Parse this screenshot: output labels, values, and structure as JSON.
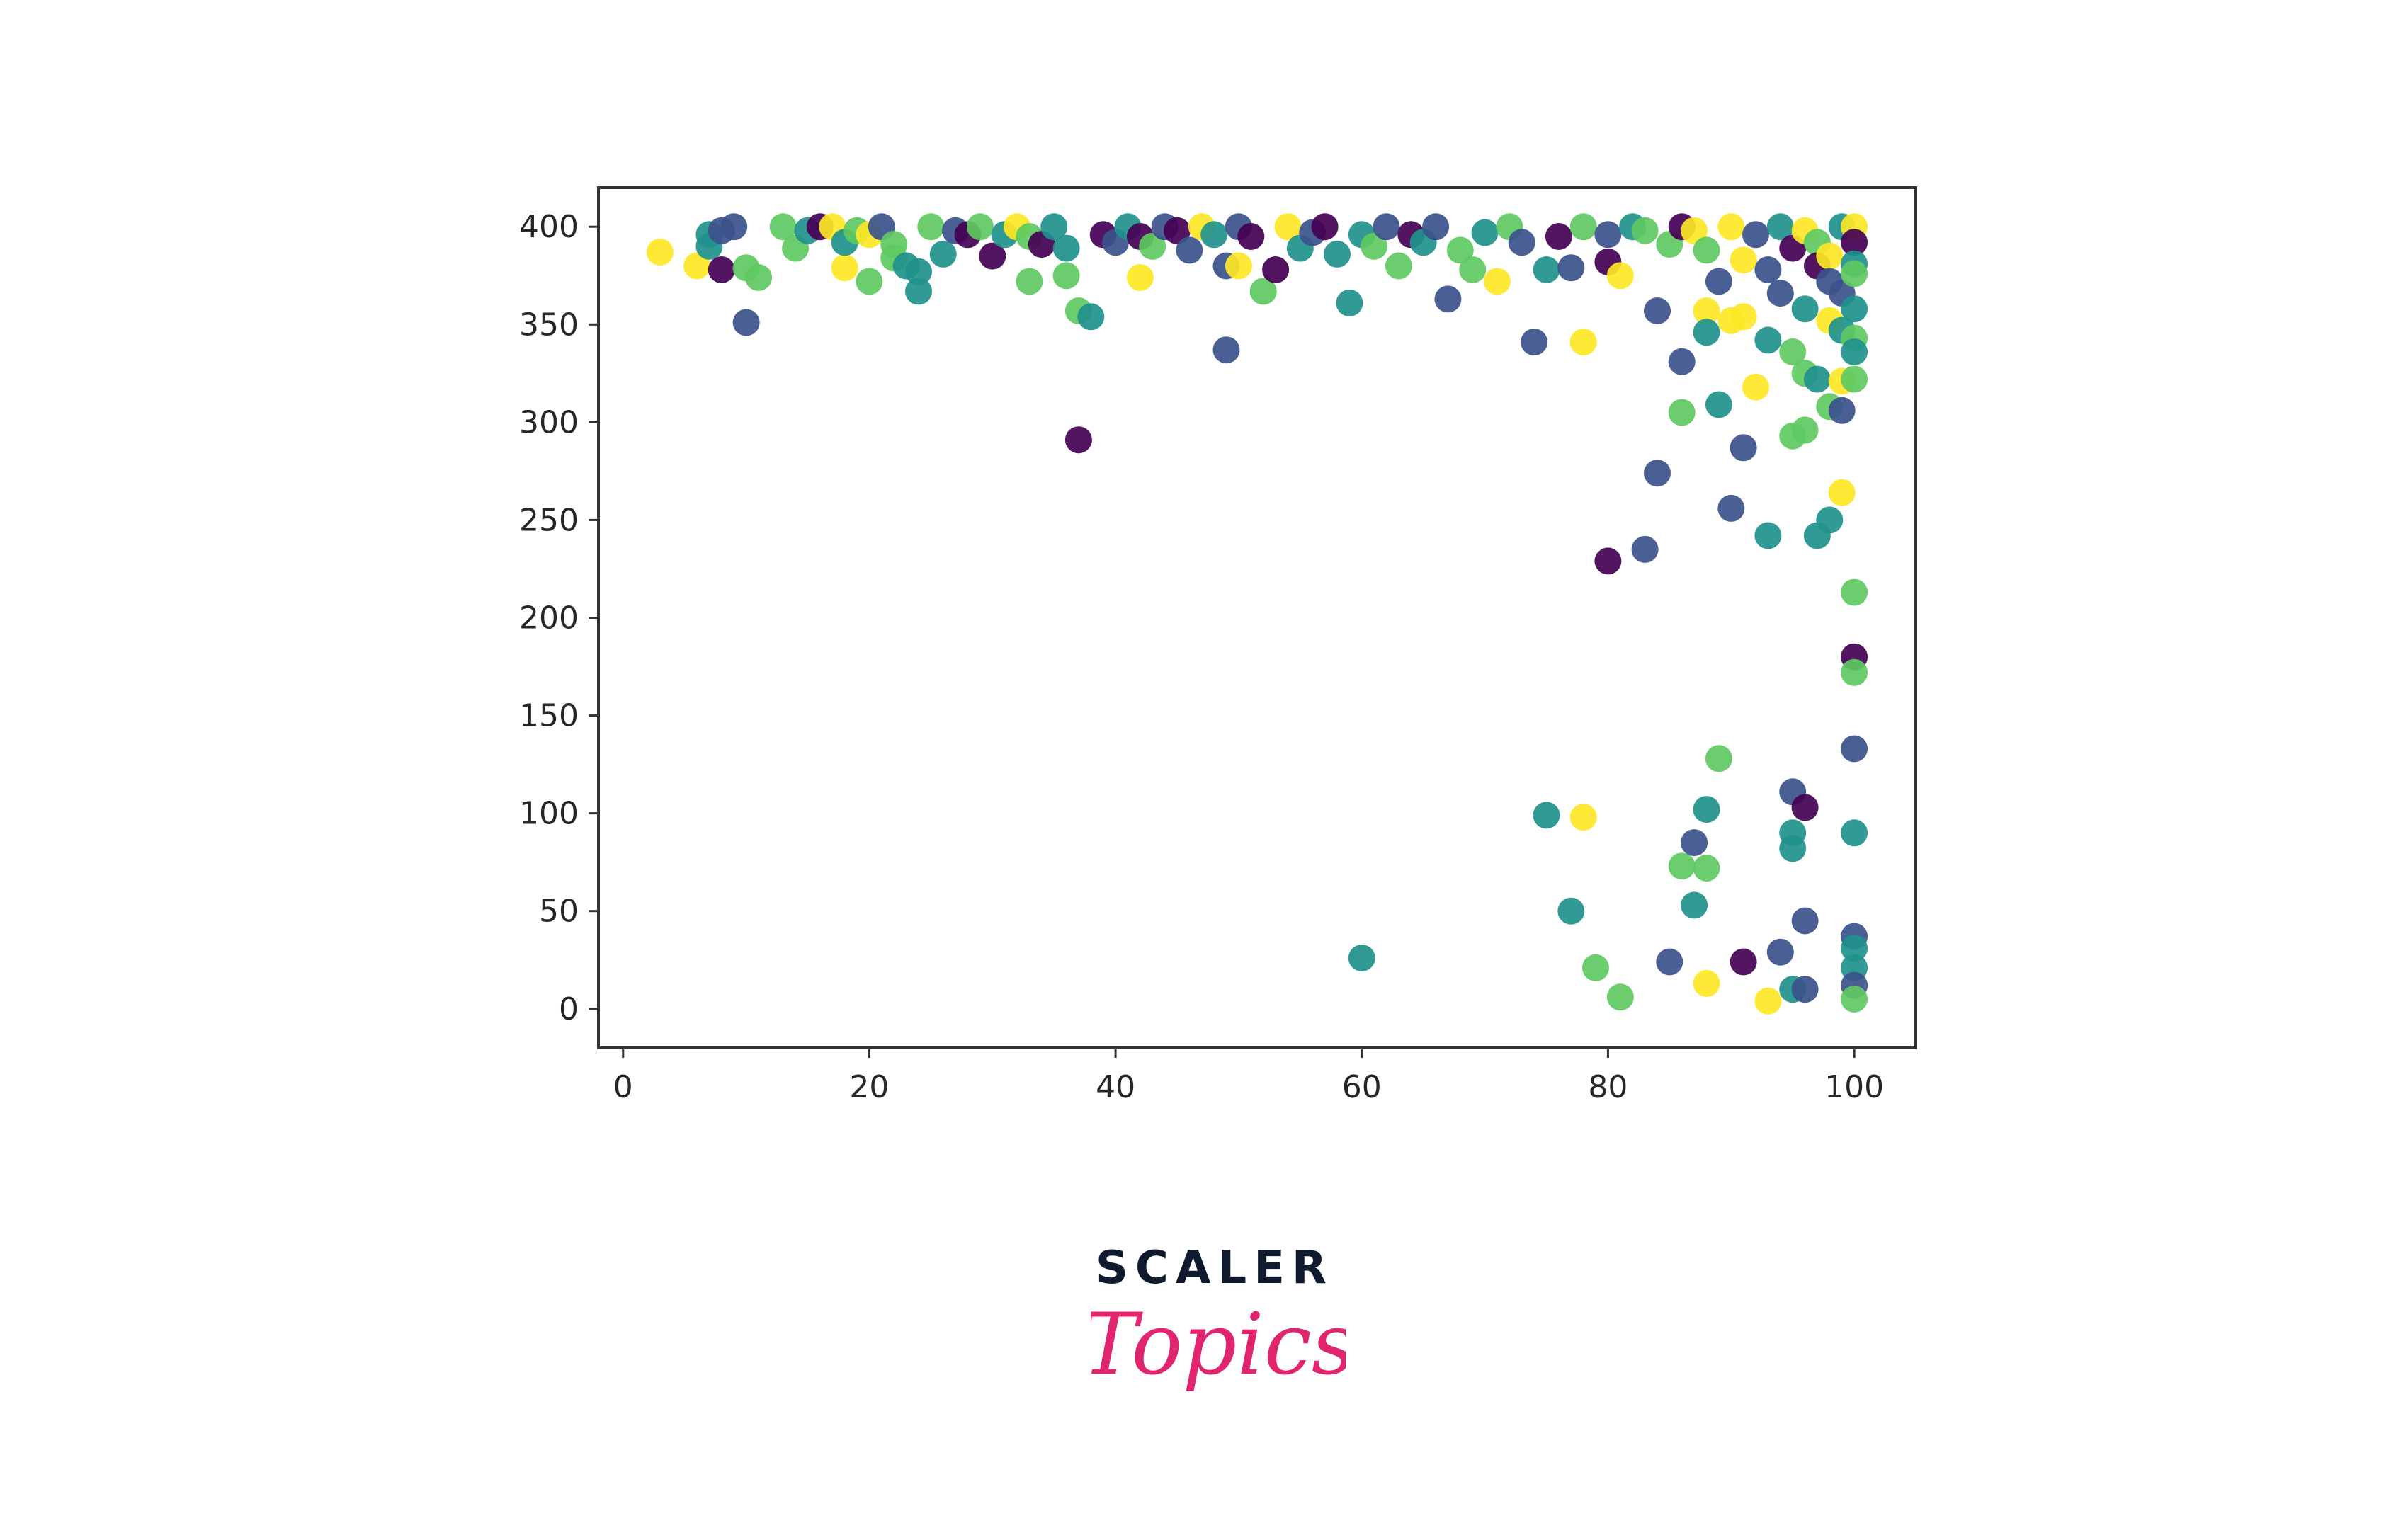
{
  "chart_data": {
    "type": "scatter",
    "title": "",
    "xlabel": "",
    "ylabel": "",
    "xlim": [
      -2,
      105
    ],
    "ylim": [
      -20,
      420
    ],
    "x_ticks": [
      "0",
      "20",
      "40",
      "60",
      "80",
      "100"
    ],
    "y_ticks": [
      "0",
      "50",
      "100",
      "150",
      "200",
      "250",
      "300",
      "350",
      "400"
    ],
    "grid": false,
    "legend": "none",
    "colormap": "viridis",
    "palette": [
      "#440154",
      "#3b528b",
      "#21918c",
      "#5ec962",
      "#fde725"
    ],
    "points": [
      [
        3,
        387,
        4
      ],
      [
        6,
        380,
        4
      ],
      [
        7,
        396,
        2
      ],
      [
        7,
        390,
        2
      ],
      [
        8,
        378,
        0
      ],
      [
        8,
        398,
        1
      ],
      [
        9,
        400,
        1
      ],
      [
        10,
        379,
        3
      ],
      [
        10,
        351,
        1
      ],
      [
        11,
        374,
        3
      ],
      [
        13,
        400,
        3
      ],
      [
        14,
        389,
        3
      ],
      [
        15,
        398,
        2
      ],
      [
        16,
        400,
        0
      ],
      [
        17,
        400,
        4
      ],
      [
        18,
        379,
        4
      ],
      [
        18,
        392,
        2
      ],
      [
        19,
        398,
        3
      ],
      [
        20,
        396,
        4
      ],
      [
        20,
        372,
        3
      ],
      [
        21,
        400,
        1
      ],
      [
        22,
        391,
        3
      ],
      [
        22,
        384,
        3
      ],
      [
        23,
        380,
        2
      ],
      [
        24,
        377,
        2
      ],
      [
        24,
        367,
        2
      ],
      [
        25,
        400,
        3
      ],
      [
        26,
        386,
        2
      ],
      [
        27,
        398,
        1
      ],
      [
        28,
        396,
        0
      ],
      [
        29,
        400,
        3
      ],
      [
        30,
        385,
        0
      ],
      [
        31,
        396,
        2
      ],
      [
        32,
        400,
        4
      ],
      [
        33,
        395,
        3
      ],
      [
        33,
        372,
        3
      ],
      [
        34,
        391,
        0
      ],
      [
        35,
        400,
        2
      ],
      [
        36,
        389,
        2
      ],
      [
        36,
        375,
        3
      ],
      [
        37,
        357,
        3
      ],
      [
        37,
        291,
        0
      ],
      [
        38,
        354,
        2
      ],
      [
        39,
        396,
        0
      ],
      [
        40,
        392,
        1
      ],
      [
        41,
        400,
        2
      ],
      [
        42,
        395,
        0
      ],
      [
        42,
        374,
        4
      ],
      [
        43,
        390,
        3
      ],
      [
        44,
        400,
        1
      ],
      [
        45,
        398,
        0
      ],
      [
        46,
        388,
        1
      ],
      [
        47,
        400,
        4
      ],
      [
        48,
        396,
        2
      ],
      [
        49,
        380,
        1
      ],
      [
        49,
        337,
        1
      ],
      [
        50,
        400,
        1
      ],
      [
        50,
        380,
        4
      ],
      [
        51,
        395,
        0
      ],
      [
        52,
        367,
        3
      ],
      [
        53,
        378,
        0
      ],
      [
        54,
        400,
        4
      ],
      [
        55,
        389,
        2
      ],
      [
        56,
        397,
        1
      ],
      [
        57,
        400,
        0
      ],
      [
        58,
        386,
        2
      ],
      [
        59,
        361,
        2
      ],
      [
        60,
        396,
        2
      ],
      [
        60,
        26,
        2
      ],
      [
        61,
        390,
        3
      ],
      [
        62,
        400,
        1
      ],
      [
        63,
        380,
        3
      ],
      [
        64,
        396,
        0
      ],
      [
        65,
        392,
        2
      ],
      [
        66,
        400,
        1
      ],
      [
        67,
        363,
        1
      ],
      [
        68,
        388,
        3
      ],
      [
        69,
        378,
        3
      ],
      [
        70,
        397,
        2
      ],
      [
        71,
        372,
        4
      ],
      [
        72,
        400,
        3
      ],
      [
        73,
        392,
        1
      ],
      [
        74,
        341,
        1
      ],
      [
        75,
        378,
        2
      ],
      [
        75,
        99,
        2
      ],
      [
        76,
        395,
        0
      ],
      [
        77,
        379,
        1
      ],
      [
        77,
        50,
        2
      ],
      [
        78,
        400,
        3
      ],
      [
        78,
        341,
        4
      ],
      [
        78,
        98,
        4
      ],
      [
        79,
        21,
        3
      ],
      [
        80,
        396,
        1
      ],
      [
        80,
        382,
        0
      ],
      [
        80,
        229,
        0
      ],
      [
        81,
        375,
        4
      ],
      [
        81,
        6,
        3
      ],
      [
        82,
        400,
        2
      ],
      [
        83,
        398,
        3
      ],
      [
        83,
        235,
        1
      ],
      [
        84,
        357,
        1
      ],
      [
        84,
        274,
        1
      ],
      [
        85,
        391,
        3
      ],
      [
        85,
        24,
        1
      ],
      [
        86,
        400,
        0
      ],
      [
        86,
        331,
        1
      ],
      [
        86,
        305,
        3
      ],
      [
        86,
        73,
        3
      ],
      [
        87,
        398,
        4
      ],
      [
        87,
        85,
        1
      ],
      [
        87,
        53,
        2
      ],
      [
        88,
        388,
        3
      ],
      [
        88,
        357,
        4
      ],
      [
        88,
        346,
        2
      ],
      [
        88,
        102,
        2
      ],
      [
        88,
        72,
        3
      ],
      [
        88,
        13,
        4
      ],
      [
        89,
        372,
        1
      ],
      [
        89,
        309,
        2
      ],
      [
        89,
        128,
        3
      ],
      [
        90,
        400,
        4
      ],
      [
        90,
        352,
        4
      ],
      [
        90,
        256,
        1
      ],
      [
        91,
        383,
        4
      ],
      [
        91,
        354,
        4
      ],
      [
        91,
        287,
        1
      ],
      [
        91,
        24,
        0
      ],
      [
        92,
        396,
        1
      ],
      [
        92,
        318,
        4
      ],
      [
        93,
        378,
        1
      ],
      [
        93,
        342,
        2
      ],
      [
        93,
        242,
        2
      ],
      [
        93,
        4,
        4
      ],
      [
        94,
        400,
        2
      ],
      [
        94,
        366,
        1
      ],
      [
        94,
        29,
        1
      ],
      [
        95,
        389,
        0
      ],
      [
        95,
        336,
        3
      ],
      [
        95,
        293,
        3
      ],
      [
        95,
        111,
        1
      ],
      [
        95,
        90,
        2
      ],
      [
        95,
        82,
        2
      ],
      [
        95,
        10,
        2
      ],
      [
        96,
        398,
        4
      ],
      [
        96,
        358,
        2
      ],
      [
        96,
        325,
        3
      ],
      [
        96,
        296,
        3
      ],
      [
        96,
        103,
        0
      ],
      [
        96,
        45,
        1
      ],
      [
        96,
        10,
        1
      ],
      [
        97,
        392,
        3
      ],
      [
        97,
        380,
        0
      ],
      [
        97,
        322,
        2
      ],
      [
        97,
        242,
        2
      ],
      [
        98,
        385,
        4
      ],
      [
        98,
        372,
        1
      ],
      [
        98,
        352,
        4
      ],
      [
        98,
        308,
        3
      ],
      [
        98,
        250,
        2
      ],
      [
        99,
        400,
        2
      ],
      [
        99,
        366,
        1
      ],
      [
        99,
        347,
        2
      ],
      [
        99,
        321,
        4
      ],
      [
        99,
        306,
        1
      ],
      [
        99,
        264,
        4
      ],
      [
        100,
        400,
        4
      ],
      [
        100,
        392,
        0
      ],
      [
        100,
        381,
        2
      ],
      [
        100,
        376,
        3
      ],
      [
        100,
        358,
        2
      ],
      [
        100,
        343,
        3
      ],
      [
        100,
        336,
        2
      ],
      [
        100,
        322,
        3
      ],
      [
        100,
        213,
        3
      ],
      [
        100,
        180,
        0
      ],
      [
        100,
        172,
        3
      ],
      [
        100,
        133,
        1
      ],
      [
        100,
        90,
        2
      ],
      [
        100,
        37,
        1
      ],
      [
        100,
        31,
        2
      ],
      [
        100,
        21,
        2
      ],
      [
        100,
        12,
        1
      ],
      [
        100,
        5,
        3
      ]
    ]
  },
  "logo": {
    "brand": "SCALER",
    "sub": "Topics"
  }
}
